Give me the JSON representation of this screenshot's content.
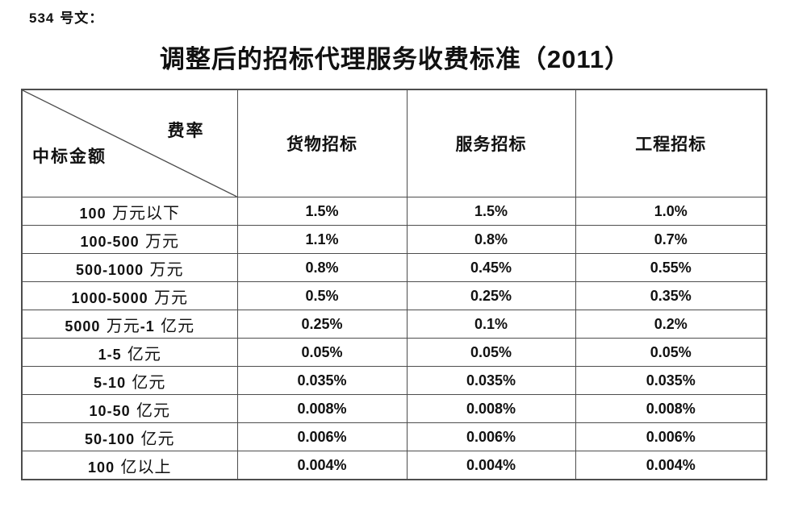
{
  "page": {
    "doc_number": "534 号文：",
    "title": "调整后的招标代理服务收费标准（2011）",
    "ink_color": "#111111",
    "grid_color": "#4d4d4d",
    "background_color": "#ffffff"
  },
  "table": {
    "corner": {
      "top_right_label": "费率",
      "bottom_left_label": "中标金额"
    },
    "column_headers": [
      "货物招标",
      "服务招标",
      "工程招标"
    ],
    "rows": [
      {
        "label": "100 万元以下",
        "values": [
          "1.5%",
          "1.5%",
          "1.0%"
        ]
      },
      {
        "label": "100-500 万元",
        "values": [
          "1.1%",
          "0.8%",
          "0.7%"
        ]
      },
      {
        "label": "500-1000 万元",
        "values": [
          "0.8%",
          "0.45%",
          "0.55%"
        ]
      },
      {
        "label": "1000-5000 万元",
        "values": [
          "0.5%",
          "0.25%",
          "0.35%"
        ]
      },
      {
        "label": "5000 万元-1 亿元",
        "values": [
          "0.25%",
          "0.1%",
          "0.2%"
        ]
      },
      {
        "label": "1-5 亿元",
        "values": [
          "0.05%",
          "0.05%",
          "0.05%"
        ]
      },
      {
        "label": "5-10 亿元",
        "values": [
          "0.035%",
          "0.035%",
          "0.035%"
        ]
      },
      {
        "label": "10-50 亿元",
        "values": [
          "0.008%",
          "0.008%",
          "0.008%"
        ]
      },
      {
        "label": "50-100 亿元",
        "values": [
          "0.006%",
          "0.006%",
          "0.006%"
        ]
      },
      {
        "label": "100 亿以上",
        "values": [
          "0.004%",
          "0.004%",
          "0.004%"
        ]
      }
    ]
  }
}
